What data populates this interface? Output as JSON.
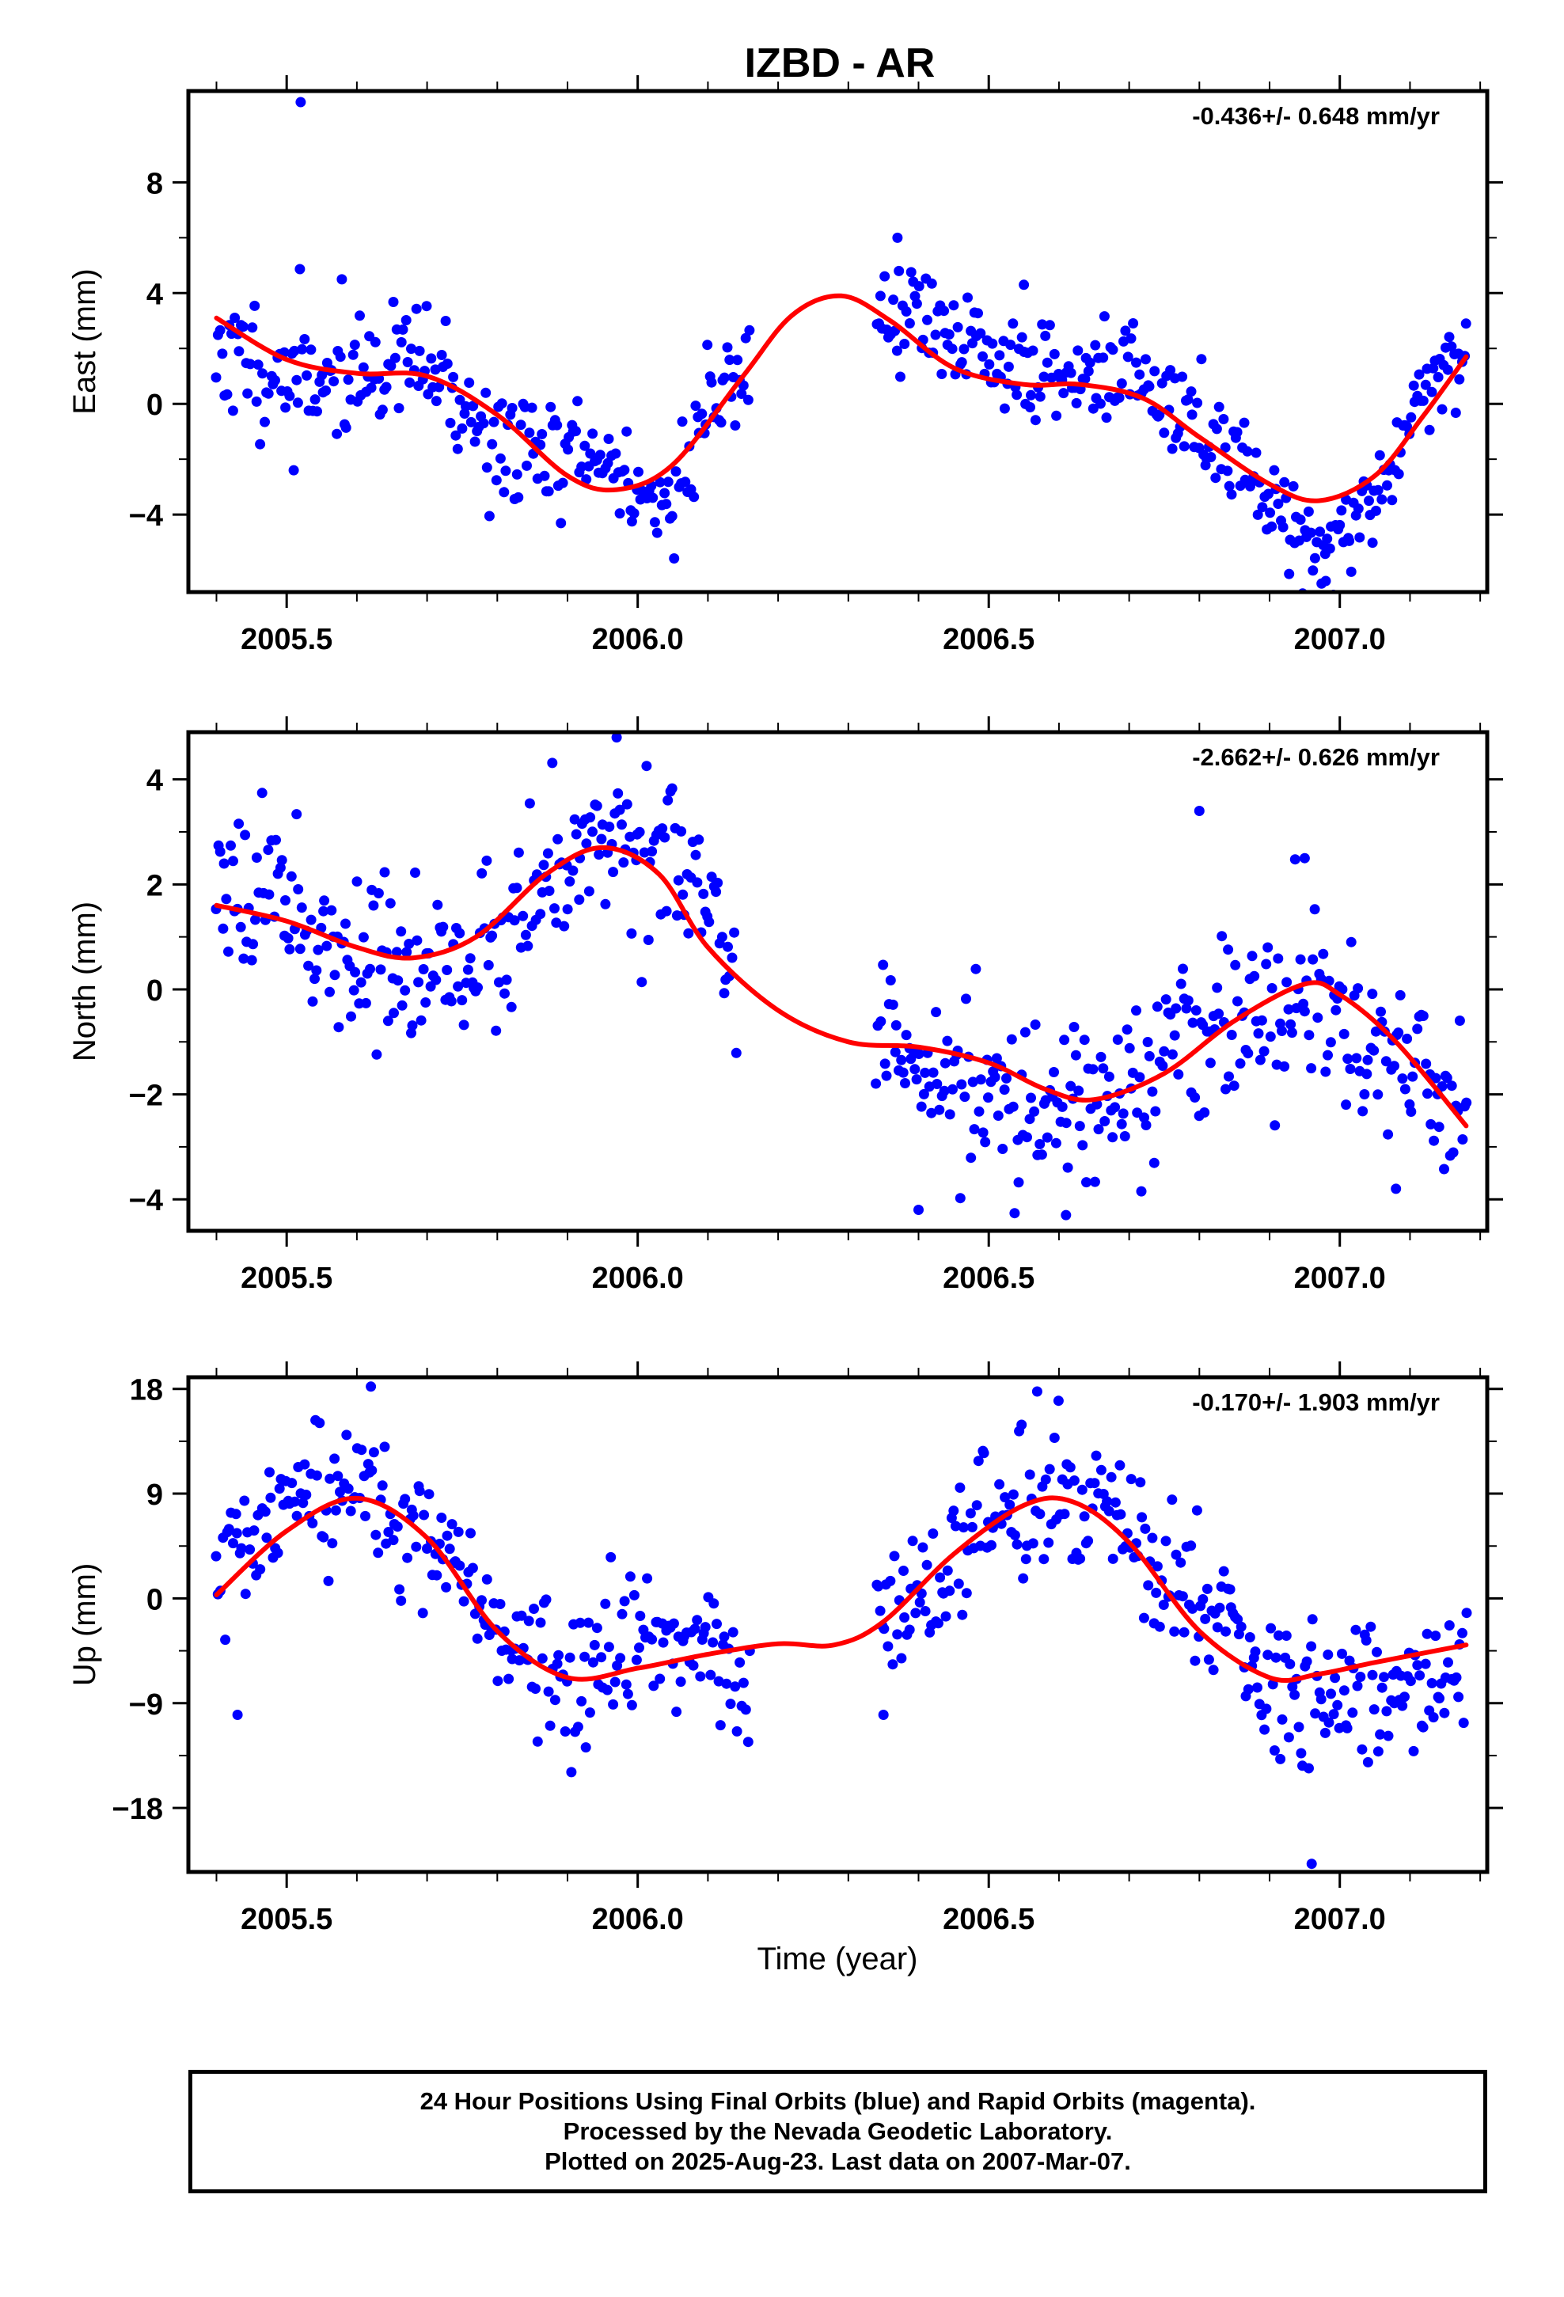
{
  "title": "IZBD - AR",
  "xlabel": "Time (year)",
  "footer": {
    "line1": "24 Hour Positions Using Final Orbits (blue) and Rapid Orbits (magenta).",
    "line2": "Processed by the Nevada Geodetic Laboratory.",
    "line3": "Plotted on 2025-Aug-23. Last data on 2007-Mar-07."
  },
  "colors": {
    "observed": "#0000ff",
    "model": "#ff0000"
  },
  "chart_data": [
    {
      "type": "scatter",
      "component": "east",
      "ylabel": "East (mm)",
      "rate_label": "-0.436+/- 0.648 mm/yr",
      "xlim": [
        2005.36,
        2007.21
      ],
      "ylim": [
        -6.8,
        11.3
      ],
      "yticks": [
        -4,
        0,
        4,
        8
      ],
      "xticks": [
        "2005.5",
        "2006.0",
        "2006.5",
        "2007.0"
      ],
      "model": {
        "x": [
          2005.4,
          2005.5,
          2005.6,
          2005.7,
          2005.8,
          2005.9,
          2005.97,
          2006.05,
          2006.15,
          2006.22,
          2006.29,
          2006.36,
          2006.45,
          2006.55,
          2006.63,
          2006.72,
          2006.8,
          2006.9,
          2006.97,
          2007.05,
          2007.12,
          2007.18
        ],
        "y": [
          3.1,
          1.6,
          1.1,
          1.0,
          -0.4,
          -2.6,
          -3.1,
          -2.2,
          1.0,
          3.2,
          3.9,
          3.0,
          1.3,
          0.7,
          0.7,
          0.2,
          -1.2,
          -2.9,
          -3.5,
          -2.6,
          -0.4,
          1.7
        ]
      },
      "segments": [
        {
          "x0": 2005.4,
          "x1": 2006.16,
          "knots_x": [
            2005.4,
            2005.5,
            2005.6,
            2005.7,
            2005.8,
            2005.9,
            2005.97,
            2006.04,
            2006.1,
            2006.16
          ],
          "knots_y": [
            2.0,
            0.9,
            1.2,
            1.4,
            -1.6,
            -1.8,
            -2.3,
            -4.0,
            0.0,
            1.6
          ],
          "noise": 1.1,
          "count": 255
        },
        {
          "x0": 2006.34,
          "x1": 2007.18,
          "knots_x": [
            2006.34,
            2006.4,
            2006.5,
            2006.6,
            2006.7,
            2006.8,
            2006.9,
            2006.97,
            2007.05,
            2007.12,
            2007.18
          ],
          "knots_y": [
            3.0,
            3.3,
            1.5,
            1.2,
            1.0,
            -1.0,
            -3.0,
            -5.5,
            -3.4,
            0.5,
            2.2
          ],
          "noise": 0.95,
          "count": 290
        }
      ],
      "outliers": [
        {
          "x": 2005.52,
          "y": 10.9
        },
        {
          "x": 2005.51,
          "y": -2.4
        },
        {
          "x": 2006.37,
          "y": 6.0
        },
        {
          "x": 2006.98,
          "y": -6.4
        },
        {
          "x": 2006.55,
          "y": 4.3
        }
      ]
    },
    {
      "type": "scatter",
      "component": "north",
      "ylabel": "North (mm)",
      "rate_label": "-2.662+/- 0.626 mm/yr",
      "xlim": [
        2005.36,
        2007.21
      ],
      "ylim": [
        -4.6,
        4.9
      ],
      "yticks": [
        -4,
        -2,
        0,
        2,
        4
      ],
      "xticks": [
        "2005.5",
        "2006.0",
        "2006.5",
        "2007.0"
      ],
      "model": {
        "x": [
          2005.4,
          2005.5,
          2005.6,
          2005.68,
          2005.77,
          2005.87,
          2005.95,
          2006.03,
          2006.1,
          2006.2,
          2006.3,
          2006.4,
          2006.5,
          2006.58,
          2006.65,
          2006.75,
          2006.85,
          2006.95,
          2007.0,
          2007.08,
          2007.18
        ],
        "y": [
          1.6,
          1.3,
          0.8,
          0.6,
          1.0,
          2.2,
          2.7,
          2.2,
          0.8,
          -0.4,
          -1.0,
          -1.1,
          -1.4,
          -1.9,
          -2.1,
          -1.6,
          -0.6,
          0.1,
          -0.1,
          -1.0,
          -2.6
        ]
      },
      "segments": [
        {
          "x0": 2005.4,
          "x1": 2006.14,
          "knots_x": [
            2005.4,
            2005.5,
            2005.6,
            2005.7,
            2005.8,
            2005.9,
            2005.97,
            2006.05,
            2006.1,
            2006.14
          ],
          "knots_y": [
            2.5,
            1.8,
            0.5,
            0.3,
            0.8,
            2.8,
            3.0,
            2.7,
            1.2,
            0.0
          ],
          "noise": 0.75,
          "count": 255
        },
        {
          "x0": 2006.34,
          "x1": 2007.18,
          "knots_x": [
            2006.34,
            2006.45,
            2006.55,
            2006.65,
            2006.75,
            2006.85,
            2006.95,
            2007.05,
            2007.12,
            2007.18
          ],
          "knots_y": [
            -1.4,
            -1.8,
            -2.1,
            -1.9,
            -1.3,
            -0.6,
            -0.2,
            -0.9,
            -1.6,
            -2.6
          ],
          "noise": 0.8,
          "count": 290
        }
      ],
      "outliers": [
        {
          "x": 2006.8,
          "y": 3.4
        },
        {
          "x": 2006.61,
          "y": -4.3
        },
        {
          "x": 2006.4,
          "y": -4.2
        },
        {
          "x": 2006.95,
          "y": 2.5
        },
        {
          "x": 2007.08,
          "y": -3.8
        },
        {
          "x": 2005.97,
          "y": 4.8
        }
      ]
    },
    {
      "type": "scatter",
      "component": "up",
      "ylabel": "Up (mm)",
      "rate_label": "-0.170+/- 1.903 mm/yr",
      "xlim": [
        2005.36,
        2007.21
      ],
      "ylim": [
        -23.5,
        19.0
      ],
      "yticks": [
        -18,
        -9,
        0,
        9,
        18
      ],
      "xticks": [
        "2005.5",
        "2006.0",
        "2006.5",
        "2007.0"
      ],
      "model": {
        "x": [
          2005.4,
          2005.5,
          2005.6,
          2005.7,
          2005.8,
          2005.9,
          2006.0,
          2006.1,
          2006.2,
          2006.28,
          2006.35,
          2006.45,
          2006.55,
          2006.62,
          2006.7,
          2006.8,
          2006.9,
          2006.97,
          2007.05,
          2007.18
        ],
        "y": [
          0.3,
          5.8,
          8.6,
          5.2,
          -2.8,
          -6.8,
          -6.0,
          -4.8,
          -3.9,
          -4.0,
          -2.0,
          3.8,
          8.0,
          8.3,
          4.8,
          -2.8,
          -6.8,
          -6.5,
          -5.5,
          -4.0
        ]
      },
      "segments": [
        {
          "x0": 2005.4,
          "x1": 2006.16,
          "knots_x": [
            2005.4,
            2005.5,
            2005.6,
            2005.7,
            2005.8,
            2005.9,
            2006.0,
            2006.08,
            2006.16
          ],
          "knots_y": [
            2.0,
            6.8,
            9.8,
            5.8,
            -3.0,
            -8.0,
            -4.0,
            -3.2,
            -9.0
          ],
          "noise": 3.0,
          "count": 255
        },
        {
          "x0": 2006.34,
          "x1": 2007.18,
          "knots_x": [
            2006.34,
            2006.42,
            2006.5,
            2006.6,
            2006.7,
            2006.8,
            2006.9,
            2006.97,
            2007.05,
            2007.12,
            2007.18
          ],
          "knots_y": [
            -3.0,
            1.5,
            6.8,
            9.5,
            6.0,
            -1.0,
            -6.8,
            -9.0,
            -8.0,
            -7.0,
            -6.0
          ],
          "noise": 3.0,
          "count": 290
        }
      ],
      "outliers": [
        {
          "x": 2006.96,
          "y": -22.8
        },
        {
          "x": 2005.62,
          "y": 18.2
        },
        {
          "x": 2006.35,
          "y": -10.0
        },
        {
          "x": 2005.43,
          "y": -10.0
        }
      ]
    }
  ]
}
